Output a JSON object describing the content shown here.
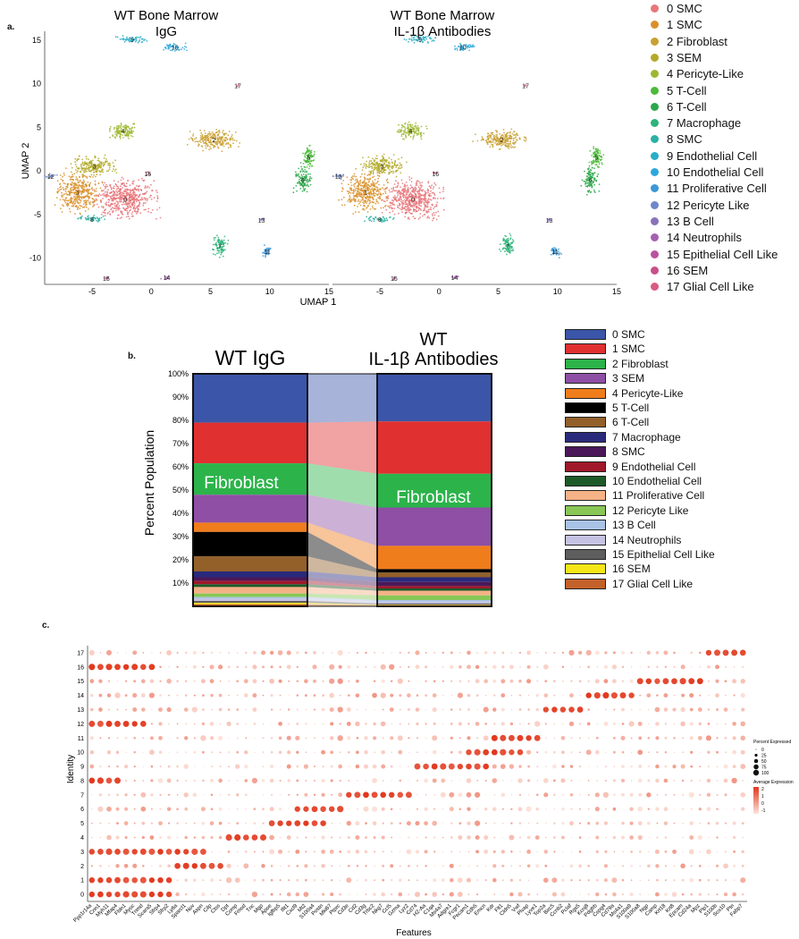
{
  "panels": {
    "a": "a.",
    "b": "b.",
    "c": "c."
  },
  "chart_data": [
    {
      "type": "scatter",
      "name": "UMAP embeddings",
      "titles": [
        {
          "line1": "WT Bone Marrow",
          "line2": "IgG"
        },
        {
          "line1": "WT Bone Marrow",
          "line2": "IL-1β Antibodies"
        }
      ],
      "xlabel": "UMAP 1",
      "ylabel": "UMAP 2",
      "xlim": [
        -9,
        15
      ],
      "ylim": [
        -13,
        16
      ],
      "xticks": [
        "-5",
        "0",
        "5",
        "10",
        "15"
      ],
      "xtick_values": [
        -5,
        0,
        5,
        10,
        15
      ],
      "yticks": [
        "15",
        "10",
        "5",
        "0",
        "-5",
        "-10"
      ],
      "ytick_values": [
        15,
        10,
        5,
        0,
        -5,
        -10
      ],
      "clusters": [
        {
          "id": "0",
          "label": "0 SMC",
          "color": "#e8767a",
          "x": -2.2,
          "y": -3.2,
          "rx": 3.4,
          "ry": 3.0,
          "n": 520
        },
        {
          "id": "1",
          "label": "1 SMC",
          "color": "#d9902a",
          "x": -6.2,
          "y": -2.4,
          "rx": 2.6,
          "ry": 3.0,
          "n": 380
        },
        {
          "id": "2",
          "label": "2 Fibroblast",
          "color": "#c9a032",
          "x": 5.3,
          "y": 3.6,
          "rx": 2.7,
          "ry": 1.5,
          "n": 230
        },
        {
          "id": "3",
          "label": "3 SEM",
          "color": "#b3aa2a",
          "x": -4.8,
          "y": 0.6,
          "rx": 2.5,
          "ry": 1.5,
          "n": 210
        },
        {
          "id": "4",
          "label": "4 Pericyte-Like",
          "color": "#9cb832",
          "x": -2.4,
          "y": 4.6,
          "rx": 1.6,
          "ry": 1.2,
          "n": 130
        },
        {
          "id": "5",
          "label": "5 T-Cell",
          "color": "#4cba3a",
          "x": 13.3,
          "y": 1.6,
          "rx": 0.7,
          "ry": 1.6,
          "n": 90
        },
        {
          "id": "6",
          "label": "6 T-Cell",
          "color": "#2ba84a",
          "x": 12.8,
          "y": -1.0,
          "rx": 1.0,
          "ry": 2.2,
          "n": 110
        },
        {
          "id": "7",
          "label": "7 Macrophage",
          "color": "#2cb479",
          "x": 5.8,
          "y": -8.6,
          "rx": 0.8,
          "ry": 1.7,
          "n": 90
        },
        {
          "id": "8",
          "label": "8 SMC",
          "color": "#2bb1a5",
          "x": -5.0,
          "y": -5.5,
          "rx": 1.6,
          "ry": 0.5,
          "n": 45
        },
        {
          "id": "9",
          "label": "9 Endothelial Cell",
          "color": "#29aec7",
          "x": -1.6,
          "y": 15.1,
          "rx": 1.7,
          "ry": 0.5,
          "n": 55
        },
        {
          "id": "10",
          "label": "10 Endothelial Cell",
          "color": "#2ea8dc",
          "x": 2.0,
          "y": 14.2,
          "rx": 1.4,
          "ry": 0.6,
          "n": 45
        },
        {
          "id": "11",
          "label": "11 Proliferative Cell",
          "color": "#3d98d6",
          "x": 9.8,
          "y": -9.2,
          "rx": 0.6,
          "ry": 0.8,
          "n": 35
        },
        {
          "id": "12",
          "label": "12 Pericyte Like",
          "color": "#6e87c8",
          "x": -8.5,
          "y": -0.6,
          "rx": 0.6,
          "ry": 0.4,
          "n": 20
        },
        {
          "id": "13",
          "label": "13 B Cell",
          "color": "#8a72b8",
          "x": 9.3,
          "y": -5.6,
          "rx": 0.3,
          "ry": 0.3,
          "n": 8
        },
        {
          "id": "14",
          "label": "14 Neutrophils",
          "color": "#a55fb0",
          "x": 1.3,
          "y": -12.2,
          "rx": 0.6,
          "ry": 0.3,
          "n": 10
        },
        {
          "id": "15",
          "label": "15 Epithelial Cell Like",
          "color": "#b952a0",
          "x": -3.8,
          "y": -12.3,
          "rx": 0.3,
          "ry": 0.2,
          "n": 6
        },
        {
          "id": "16",
          "label": "16 SEM",
          "color": "#c9508a",
          "x": -0.3,
          "y": -0.3,
          "rx": 0.3,
          "ry": 0.3,
          "n": 6
        },
        {
          "id": "17",
          "label": "17 Glial Cell Like",
          "color": "#d95b80",
          "x": 7.3,
          "y": 9.8,
          "rx": 0.2,
          "ry": 0.2,
          "n": 4
        }
      ]
    },
    {
      "type": "bar",
      "name": "Stacked percent population",
      "ylabel": "Percent Population",
      "columns": [
        {
          "title": "WT IgG",
          "subtitle": ""
        },
        {
          "title": "WT",
          "subtitle": "IL-1β Antibodies"
        }
      ],
      "annotation": "Fibroblast",
      "yticks": [
        "100%",
        "90%",
        "80%",
        "70%",
        "60%",
        "50%",
        "40%",
        "30%",
        "20%",
        "10%"
      ],
      "categories": [
        "0 SMC",
        "1 SMC",
        "2 Fibroblast",
        "3 SEM",
        "4 Pericyte-Like",
        "5 T-Cell",
        "6 T-Cell",
        "7 Macrophage",
        "8 SMC",
        "9 Endothelial Cell",
        "10 Endothelial Cell",
        "11 Proliferative Cell",
        "12 Pericyte Like",
        "13 B Cell",
        "14 Neutrophils",
        "15 Epithelial Cell Like",
        "16 SEM",
        "17 Glial Cell Like"
      ],
      "colors": [
        "#3b56a8",
        "#e03030",
        "#2cb34a",
        "#8e4fa5",
        "#f07d1c",
        "#000000",
        "#93602a",
        "#2a2a7c",
        "#4a1858",
        "#a0182a",
        "#1d5a28",
        "#f4b286",
        "#88c756",
        "#a9c3e6",
        "#c6c2e2",
        "#5e5e5e",
        "#f5e617",
        "#c4602a"
      ],
      "series": [
        {
          "name": "WT IgG",
          "values": [
            21.0,
            17.5,
            13.5,
            12.0,
            4.0,
            10.5,
            6.5,
            2.5,
            1.5,
            1.5,
            1.2,
            2.8,
            1.5,
            0.7,
            1.0,
            0.8,
            0.6,
            0.9
          ]
        },
        {
          "name": "WT IL-1β Antibodies",
          "values": [
            20.5,
            22.5,
            14.5,
            16.5,
            10.0,
            1.5,
            2.0,
            2.0,
            1.8,
            1.0,
            1.0,
            2.0,
            2.0,
            0.7,
            0.8,
            0.5,
            0.2,
            0.5
          ]
        }
      ]
    },
    {
      "type": "scatter",
      "name": "Marker gene dot plot",
      "xlabel": "Features",
      "ylabel": "Identity",
      "identities": [
        "0",
        "1",
        "2",
        "3",
        "4",
        "5",
        "6",
        "7",
        "8",
        "9",
        "10",
        "11",
        "12",
        "13",
        "14",
        "15",
        "16",
        "17"
      ],
      "features": [
        "Ppp1r14a",
        "Cnn1",
        "Myh11",
        "Mfap4",
        "Fbln1",
        "Myoc",
        "Tnmd",
        "Scara5",
        "Sfrp4",
        "Sfrp2",
        "Ly6a",
        "Sparcl1",
        "Nov",
        "Aspn",
        "Cilp",
        "Ctss",
        "Dpt",
        "Comp",
        "Fmod",
        "Tnc",
        "Mgp",
        "Apoe",
        "Igfbp5",
        "Ifit1",
        "Cxcl9",
        "Mt2",
        "S100a4",
        "Postn",
        "Mki67",
        "Ptprc",
        "Cd3e",
        "Cd2",
        "Cd3g",
        "Trbc2",
        "Nkg7",
        "Ccl5",
        "Gzma",
        "Lyz2",
        "Cd74",
        "H2-Aa",
        "C1qa",
        "Ms4a7",
        "Adgre1",
        "Fcgr1",
        "Pecam1",
        "Cdh5",
        "Emcn",
        "Kdr",
        "Flt1",
        "Cldn5",
        "Vwf",
        "Plvap",
        "Lyve1",
        "Top2a",
        "Birc5",
        "Ccnb2",
        "Pclaf",
        "Rgs5",
        "Kcnj8",
        "Pdgfrb",
        "Cspg4",
        "Cd79a",
        "Ms4a1",
        "S100a9",
        "S100a8",
        "Ngp",
        "Camp",
        "Krt18",
        "Krt8",
        "Epcam",
        "Cd24a",
        "Mpz",
        "Plp1",
        "S100b",
        "Sox10",
        "Ptn",
        "Fabp7"
      ],
      "color_legend": {
        "title": "Average Expression",
        "ticks": [
          "2",
          "1",
          "0",
          "-1"
        ],
        "low": "#fde4dc",
        "high": "#e2371c"
      },
      "size_legend": {
        "title": "Percent Expressed",
        "ticks": [
          "0",
          "25",
          "50",
          "75",
          "100"
        ]
      },
      "marker_blocks": [
        {
          "identity": "17",
          "start": 72,
          "end": 76
        },
        {
          "identity": "16",
          "start": 0,
          "end": 7
        },
        {
          "identity": "15",
          "start": 64,
          "end": 71
        },
        {
          "identity": "14",
          "start": 58,
          "end": 63
        },
        {
          "identity": "13",
          "start": 53,
          "end": 57
        },
        {
          "identity": "12",
          "start": 0,
          "end": 6
        },
        {
          "identity": "11",
          "start": 47,
          "end": 52
        },
        {
          "identity": "10",
          "start": 44,
          "end": 50
        },
        {
          "identity": "9",
          "start": 38,
          "end": 46
        },
        {
          "identity": "8",
          "start": 0,
          "end": 3
        },
        {
          "identity": "7",
          "start": 30,
          "end": 37
        },
        {
          "identity": "6",
          "start": 24,
          "end": 29
        },
        {
          "identity": "5",
          "start": 21,
          "end": 27
        },
        {
          "identity": "4",
          "start": 16,
          "end": 20
        },
        {
          "identity": "3",
          "start": 0,
          "end": 13
        },
        {
          "identity": "2",
          "start": 10,
          "end": 15
        },
        {
          "identity": "1",
          "start": 0,
          "end": 9
        },
        {
          "identity": "0",
          "start": 0,
          "end": 9
        }
      ]
    }
  ]
}
